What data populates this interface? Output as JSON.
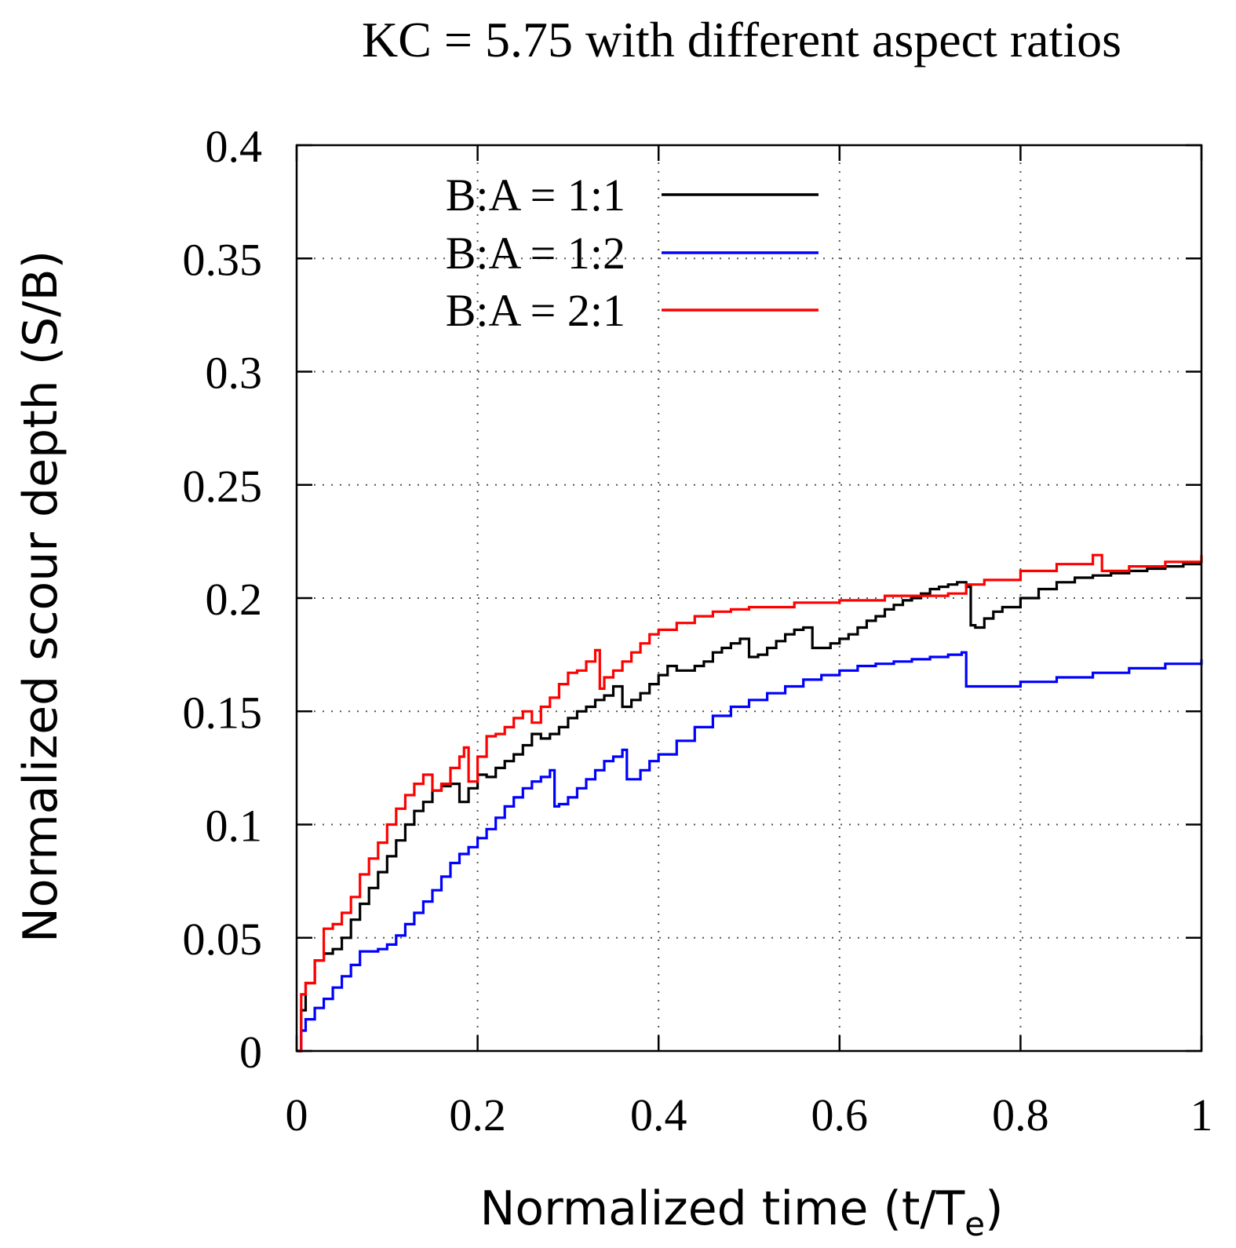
{
  "chart_data": {
    "type": "line",
    "title": "KC = 5.75 with different aspect ratios",
    "xlabel": "Normalized time (t/T",
    "xlabel_sub": "e",
    "xlabel_close": ")",
    "ylabel": "Normalized scour depth (S/B)",
    "xlim": [
      0,
      1
    ],
    "ylim": [
      0,
      0.4
    ],
    "x_ticks": [
      0,
      0.2,
      0.4,
      0.6,
      0.8,
      1
    ],
    "x_tick_labels": [
      "0",
      "0.2",
      "0.4",
      "0.6",
      "0.8",
      "1"
    ],
    "y_ticks": [
      0,
      0.05,
      0.1,
      0.15,
      0.2,
      0.25,
      0.3,
      0.35,
      0.4
    ],
    "y_tick_labels": [
      "0",
      "0.05",
      "0.1",
      "0.15",
      "0.2",
      "0.25",
      "0.3",
      "0.35",
      "0.4"
    ],
    "grid": true,
    "legend_position": "top-left",
    "series": [
      {
        "name": "B:A = 1:1",
        "color": "#000000",
        "x": [
          0,
          0.005,
          0.01,
          0.02,
          0.03,
          0.04,
          0.05,
          0.06,
          0.07,
          0.08,
          0.09,
          0.1,
          0.11,
          0.12,
          0.13,
          0.14,
          0.15,
          0.16,
          0.17,
          0.18,
          0.19,
          0.2,
          0.21,
          0.22,
          0.23,
          0.24,
          0.25,
          0.26,
          0.27,
          0.28,
          0.29,
          0.3,
          0.31,
          0.32,
          0.33,
          0.34,
          0.35,
          0.36,
          0.37,
          0.38,
          0.39,
          0.4,
          0.41,
          0.42,
          0.43,
          0.44,
          0.45,
          0.46,
          0.47,
          0.48,
          0.49,
          0.5,
          0.51,
          0.52,
          0.53,
          0.54,
          0.55,
          0.56,
          0.57,
          0.58,
          0.59,
          0.6,
          0.61,
          0.62,
          0.63,
          0.64,
          0.65,
          0.66,
          0.67,
          0.68,
          0.69,
          0.7,
          0.71,
          0.72,
          0.73,
          0.74,
          0.745,
          0.75,
          0.76,
          0.77,
          0.78,
          0.8,
          0.82,
          0.84,
          0.86,
          0.88,
          0.9,
          0.92,
          0.94,
          0.96,
          0.98,
          1.0
        ],
        "values": [
          0,
          0.018,
          0.03,
          0.04,
          0.043,
          0.045,
          0.05,
          0.058,
          0.065,
          0.072,
          0.079,
          0.086,
          0.093,
          0.1,
          0.106,
          0.11,
          0.115,
          0.117,
          0.118,
          0.11,
          0.116,
          0.122,
          0.121,
          0.125,
          0.128,
          0.131,
          0.135,
          0.14,
          0.138,
          0.14,
          0.143,
          0.147,
          0.15,
          0.152,
          0.155,
          0.157,
          0.161,
          0.152,
          0.155,
          0.158,
          0.162,
          0.166,
          0.17,
          0.168,
          0.168,
          0.17,
          0.172,
          0.176,
          0.178,
          0.18,
          0.182,
          0.174,
          0.175,
          0.178,
          0.181,
          0.184,
          0.186,
          0.187,
          0.178,
          0.178,
          0.18,
          0.182,
          0.184,
          0.187,
          0.19,
          0.192,
          0.195,
          0.197,
          0.199,
          0.2,
          0.202,
          0.204,
          0.205,
          0.206,
          0.207,
          0.205,
          0.188,
          0.187,
          0.191,
          0.194,
          0.196,
          0.2,
          0.204,
          0.207,
          0.209,
          0.21,
          0.211,
          0.212,
          0.213,
          0.214,
          0.215,
          0.215
        ]
      },
      {
        "name": "B:A = 1:2",
        "color": "#0000ff",
        "x": [
          0,
          0.005,
          0.01,
          0.02,
          0.03,
          0.04,
          0.05,
          0.06,
          0.07,
          0.08,
          0.09,
          0.1,
          0.11,
          0.12,
          0.13,
          0.14,
          0.15,
          0.16,
          0.17,
          0.18,
          0.19,
          0.2,
          0.21,
          0.22,
          0.23,
          0.24,
          0.25,
          0.26,
          0.27,
          0.28,
          0.285,
          0.29,
          0.3,
          0.31,
          0.32,
          0.33,
          0.34,
          0.35,
          0.36,
          0.365,
          0.37,
          0.38,
          0.39,
          0.4,
          0.42,
          0.44,
          0.46,
          0.48,
          0.5,
          0.52,
          0.54,
          0.56,
          0.58,
          0.6,
          0.62,
          0.64,
          0.66,
          0.68,
          0.7,
          0.72,
          0.735,
          0.74,
          0.76,
          0.8,
          0.84,
          0.88,
          0.92,
          0.96,
          1.0
        ],
        "values": [
          0,
          0.009,
          0.014,
          0.019,
          0.023,
          0.028,
          0.033,
          0.038,
          0.044,
          0.044,
          0.045,
          0.047,
          0.051,
          0.056,
          0.061,
          0.066,
          0.071,
          0.077,
          0.083,
          0.087,
          0.09,
          0.094,
          0.098,
          0.103,
          0.108,
          0.112,
          0.116,
          0.119,
          0.121,
          0.124,
          0.108,
          0.109,
          0.112,
          0.116,
          0.12,
          0.124,
          0.128,
          0.13,
          0.133,
          0.12,
          0.12,
          0.124,
          0.128,
          0.131,
          0.137,
          0.143,
          0.148,
          0.152,
          0.155,
          0.158,
          0.161,
          0.164,
          0.166,
          0.168,
          0.17,
          0.171,
          0.172,
          0.173,
          0.174,
          0.175,
          0.176,
          0.161,
          0.161,
          0.163,
          0.165,
          0.167,
          0.169,
          0.171,
          0.173
        ]
      },
      {
        "name": "B:A = 2:1",
        "color": "#ff0000",
        "x": [
          0,
          0.005,
          0.01,
          0.02,
          0.03,
          0.04,
          0.05,
          0.06,
          0.07,
          0.08,
          0.09,
          0.1,
          0.11,
          0.12,
          0.13,
          0.14,
          0.15,
          0.16,
          0.17,
          0.18,
          0.185,
          0.19,
          0.2,
          0.21,
          0.22,
          0.23,
          0.24,
          0.25,
          0.26,
          0.27,
          0.28,
          0.29,
          0.3,
          0.31,
          0.32,
          0.33,
          0.335,
          0.34,
          0.35,
          0.36,
          0.37,
          0.38,
          0.39,
          0.4,
          0.42,
          0.44,
          0.46,
          0.48,
          0.5,
          0.55,
          0.6,
          0.65,
          0.7,
          0.72,
          0.74,
          0.76,
          0.8,
          0.84,
          0.88,
          0.885,
          0.89,
          0.92,
          0.96,
          1.0
        ],
        "values": [
          0,
          0.025,
          0.03,
          0.04,
          0.054,
          0.056,
          0.061,
          0.068,
          0.078,
          0.085,
          0.092,
          0.1,
          0.107,
          0.113,
          0.118,
          0.122,
          0.115,
          0.118,
          0.125,
          0.13,
          0.134,
          0.119,
          0.13,
          0.139,
          0.14,
          0.143,
          0.147,
          0.15,
          0.145,
          0.152,
          0.156,
          0.162,
          0.167,
          0.168,
          0.172,
          0.177,
          0.16,
          0.165,
          0.168,
          0.172,
          0.176,
          0.18,
          0.184,
          0.186,
          0.189,
          0.192,
          0.194,
          0.195,
          0.196,
          0.198,
          0.199,
          0.201,
          0.201,
          0.202,
          0.206,
          0.208,
          0.212,
          0.215,
          0.219,
          0.219,
          0.212,
          0.214,
          0.216,
          0.219
        ]
      }
    ]
  }
}
